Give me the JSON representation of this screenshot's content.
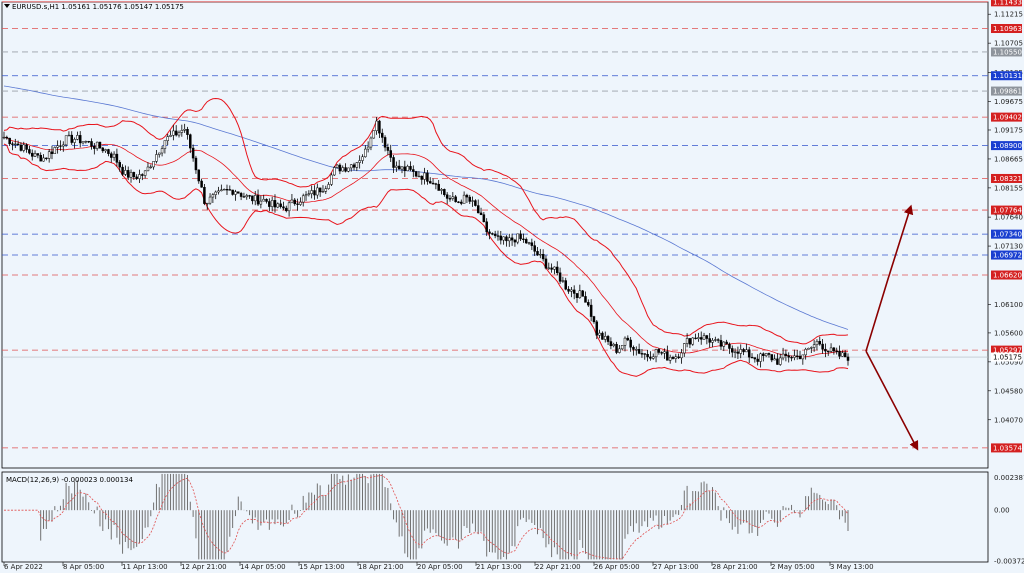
{
  "header": {
    "symbol_info": "EURUSD.s,H1  1.05161 1.05176 1.05147 1.05175",
    "macd_info": "MACD(12,26,9) -0.000023 0.000134"
  },
  "colors": {
    "background": "#eef5fc",
    "candles": "#000000",
    "bollinger": "#e8141c",
    "moving_average": "#5a78d2",
    "resistance_line": "#e05050",
    "support_line": "#3355cc",
    "arrow": "#8b0000",
    "macd_hist": "#707070",
    "macd_signal": "#e05050"
  },
  "chart_data": {
    "type": "candlestick",
    "symbol": "EURUSD.s",
    "timeframe": "H1",
    "ylim": [
      1.0322,
      1.1143
    ],
    "x_tick_labels": [
      "6 Apr 2022",
      "8 Apr 05:00",
      "11 Apr 13:00",
      "12 Apr 21:00",
      "14 Apr 05:00",
      "15 Apr 13:00",
      "18 Apr 21:00",
      "20 Apr 05:00",
      "21 Apr 13:00",
      "22 Apr 21:00",
      "26 Apr 05:00",
      "27 Apr 13:00",
      "28 Apr 21:00",
      "2 May 05:00",
      "3 May 13:00"
    ],
    "y_tick_labels": [
      "1.11215",
      "1.10705",
      "1.10185",
      "1.09675",
      "1.09175",
      "1.08665",
      "1.08155",
      "1.07640",
      "1.07130",
      "1.06100",
      "1.05600",
      "1.05090",
      "1.04580",
      "1.04070"
    ],
    "red_levels": [
      {
        "label": "1.11433",
        "value": 1.11433,
        "style": "solid"
      },
      {
        "label": "1.10963",
        "value": 1.10963,
        "style": "dashed"
      },
      {
        "label": "1.09402",
        "value": 1.09402,
        "style": "dashed"
      },
      {
        "label": "1.08321",
        "value": 1.08321,
        "style": "dashed"
      },
      {
        "label": "1.07764",
        "value": 1.07764,
        "style": "dashed"
      },
      {
        "label": "1.06620",
        "value": 1.0662,
        "style": "dashed"
      },
      {
        "label": "1.05297",
        "value": 1.05297,
        "style": "dashed"
      },
      {
        "label": "1.03574",
        "value": 1.03574,
        "style": "dashed"
      }
    ],
    "blue_levels": [
      {
        "label": "1.10131",
        "value": 1.10131
      },
      {
        "label": "1.08900",
        "value": 1.089
      },
      {
        "label": "1.07340",
        "value": 1.0734
      },
      {
        "label": "1.06972",
        "value": 1.06972
      }
    ],
    "gray_levels": [
      {
        "label": "1.10550",
        "value": 1.1055
      },
      {
        "label": "1.09861",
        "value": 1.09861
      }
    ],
    "current_price": {
      "label": "1.05175",
      "value": 1.05175
    },
    "price_path": [
      1.0905,
      1.0895,
      1.0885,
      1.0872,
      1.0868,
      1.0885,
      1.09,
      1.0902,
      1.0898,
      1.089,
      1.0884,
      1.087,
      1.084,
      1.0835,
      1.084,
      1.087,
      1.09,
      1.091,
      1.092,
      1.0858,
      1.079,
      1.08,
      1.081,
      1.0812,
      1.08,
      1.0795,
      1.0794,
      1.0782,
      1.078,
      1.0792,
      1.08,
      1.0808,
      1.082,
      1.085,
      1.0852,
      1.086,
      1.088,
      1.0935,
      1.089,
      1.085,
      1.0848,
      1.084,
      1.0835,
      1.0825,
      1.08,
      1.079,
      1.0798,
      1.078,
      1.074,
      1.0725,
      1.072,
      1.0728,
      1.072,
      1.07,
      1.068,
      1.0665,
      1.064,
      1.063,
      1.062,
      1.056,
      1.0545,
      1.053,
      1.0548,
      1.053,
      1.052,
      1.0528,
      1.0518,
      1.052,
      1.0545,
      1.0555,
      1.055,
      1.054,
      1.0535,
      1.053,
      1.0522,
      1.0515,
      1.052,
      1.051,
      1.052,
      1.0518,
      1.0528,
      1.0545,
      1.053,
      1.052,
      1.0518
    ],
    "macd_ylim": [
      -0.0038,
      0.0028
    ],
    "macd_tick_labels": [
      "0.002387",
      "0.00",
      "-0.003721"
    ]
  }
}
